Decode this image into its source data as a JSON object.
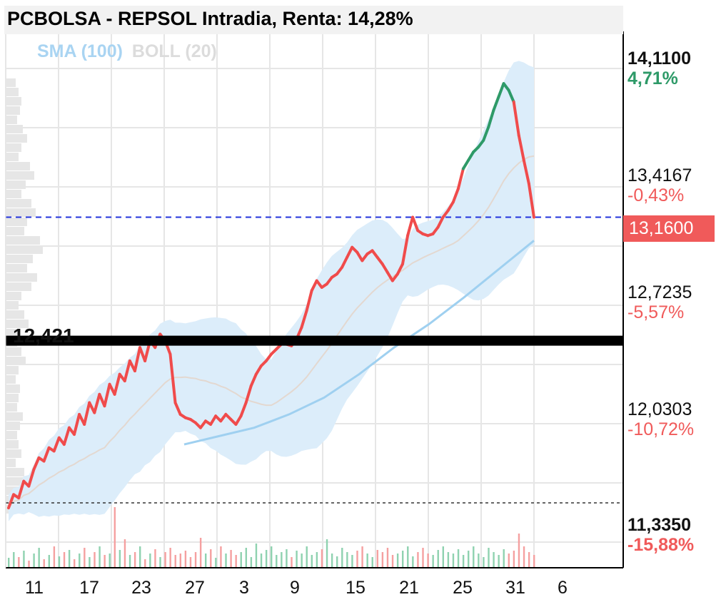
{
  "title": "PCBOLSA - REPSOL Intradia, Renta: 14,28%",
  "legend": {
    "sma": "SMA (100)",
    "boll": "BOLL (20)"
  },
  "current_price": "13,1600",
  "level_line": {
    "label": "12,421",
    "value": 12.421
  },
  "colors": {
    "up": "#2e9a68",
    "down": "#f04b4b",
    "sma": "#9fd0f0",
    "boll_fill": "#dcedfa",
    "dashed": "#2233dd"
  },
  "y_labels": [
    {
      "price": "14,1100",
      "pct": "4,71%",
      "pct_color": "#2e9a68",
      "bold": true
    },
    {
      "price": "13,4167",
      "pct": "-0,43%",
      "pct_color": "#f05a5a",
      "bold": false
    },
    {
      "price": "12,7235",
      "pct": "-5,57%",
      "pct_color": "#f05a5a",
      "bold": false
    },
    {
      "price": "12,0303",
      "pct": "-10,72%",
      "pct_color": "#f05a5a",
      "bold": false
    },
    {
      "price": "11,3350",
      "pct": "-15,88%",
      "pct_color": "#f05a5a",
      "bold": true
    }
  ],
  "x_labels": [
    "11",
    "17",
    "23",
    "27",
    "3",
    "9",
    "15",
    "21",
    "25",
    "31",
    "6"
  ],
  "chart_data": {
    "type": "line",
    "title": "PCBOLSA - REPSOL Intradia, Renta: 14,28%",
    "ylim": [
      11.335,
      14.11
    ],
    "x_tick_labels": [
      "11",
      "17",
      "23",
      "27",
      "3",
      "9",
      "15",
      "21",
      "25",
      "31",
      "6"
    ],
    "price_series": [
      11.42,
      11.5,
      11.48,
      11.58,
      11.55,
      11.65,
      11.72,
      11.7,
      11.78,
      11.76,
      11.84,
      11.8,
      11.9,
      11.86,
      11.98,
      11.92,
      12.05,
      11.99,
      12.1,
      12.03,
      12.16,
      12.1,
      12.22,
      12.18,
      12.3,
      12.24,
      12.38,
      12.3,
      12.42,
      12.38,
      12.46,
      12.42,
      12.34,
      12.05,
      11.98,
      11.96,
      11.95,
      11.93,
      11.9,
      11.94,
      11.92,
      11.97,
      11.94,
      11.98,
      11.95,
      11.92,
      11.97,
      12.05,
      12.15,
      12.22,
      12.27,
      12.3,
      12.34,
      12.37,
      12.4,
      12.4,
      12.39,
      12.43,
      12.5,
      12.6,
      12.72,
      12.78,
      12.74,
      12.76,
      12.8,
      12.82,
      12.86,
      12.92,
      12.98,
      12.95,
      12.9,
      12.94,
      12.96,
      12.92,
      12.88,
      12.83,
      12.78,
      12.82,
      12.88,
      13.05,
      13.16,
      13.08,
      13.06,
      13.05,
      13.06,
      13.1,
      13.16,
      13.2,
      13.25,
      13.33,
      13.45,
      13.5,
      13.55,
      13.58,
      13.62,
      13.7,
      13.8,
      13.88,
      13.96,
      13.92,
      13.85,
      13.65,
      13.5,
      13.36,
      13.16
    ],
    "sma100": [
      {
        "x": 0,
        "y": 11.8
      },
      {
        "x": 0.1,
        "y": 11.85
      },
      {
        "x": 0.2,
        "y": 11.9
      },
      {
        "x": 0.3,
        "y": 11.98
      },
      {
        "x": 0.4,
        "y": 12.08
      },
      {
        "x": 0.5,
        "y": 12.22
      },
      {
        "x": 0.6,
        "y": 12.38
      },
      {
        "x": 0.7,
        "y": 12.52
      },
      {
        "x": 0.8,
        "y": 12.68
      },
      {
        "x": 0.9,
        "y": 12.85
      },
      {
        "x": 1,
        "y": 13.02
      }
    ],
    "volume_series": [
      0.14,
      0.22,
      0.15,
      0.24,
      0.1,
      0.2,
      0.28,
      0.12,
      0.18,
      0.3,
      0.16,
      0.22,
      0.25,
      0.12,
      0.2,
      0.28,
      0.15,
      0.22,
      0.3,
      0.18,
      0.2,
      0.85,
      0.25,
      0.4,
      0.18,
      0.22,
      0.3,
      0.12,
      0.2,
      0.26,
      0.15,
      0.22,
      0.28,
      0.18,
      0.2,
      0.24,
      0.15,
      0.22,
      0.42,
      0.2,
      0.26,
      0.14,
      0.3,
      0.2,
      0.25,
      0.18,
      0.22,
      0.28,
      0.15,
      0.34,
      0.2,
      0.25,
      0.3,
      0.18,
      0.22,
      0.26,
      0.15,
      0.24,
      0.2,
      0.3,
      0.18,
      0.22,
      0.26,
      0.4,
      0.2,
      0.16,
      0.28,
      0.22,
      0.18,
      0.24,
      0.3,
      0.2,
      0.15,
      0.25,
      0.22,
      0.28,
      0.18,
      0.2,
      0.24,
      0.3,
      0.16,
      0.22,
      0.28,
      0.2,
      0.18,
      0.25,
      0.3,
      0.22,
      0.2,
      0.26,
      0.18,
      0.24,
      0.3,
      0.2,
      0.15,
      0.28,
      0.22,
      0.18,
      0.26,
      0.2,
      0.24,
      0.48,
      0.3,
      0.22,
      0.18
    ]
  }
}
